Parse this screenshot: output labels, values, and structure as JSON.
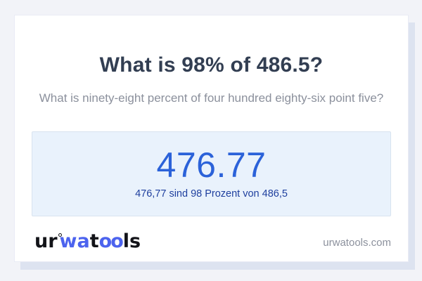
{
  "card": {
    "title": "What is 98% of 486.5?",
    "subtitle": "What is ninety-eight percent of four hundred eighty-six point five?",
    "result": {
      "value": "476.77",
      "description": "476,77 sind 98 Prozent von 486,5"
    },
    "footer": {
      "logo": {
        "ur": "ur",
        "wa": "wa",
        "t": "t",
        "oo": "oo",
        "ls": "ls"
      },
      "site": "urwatools.com"
    }
  },
  "colors": {
    "page-bg": "#f2f3f8",
    "card-bg": "#ffffff",
    "card-border": "#e9ebf5",
    "card-shadow": "#dde3f0",
    "title-text": "#323e52",
    "subtitle-text": "#8b909c",
    "result-box-bg": "#e9f2fc",
    "result-box-border": "#d8e3ef",
    "result-value-text": "#2b62d9",
    "result-desc-text": "#1e3f9e",
    "logo-dark": "#121318",
    "logo-blue": "#4c63ee",
    "site-text": "#8c919d"
  }
}
